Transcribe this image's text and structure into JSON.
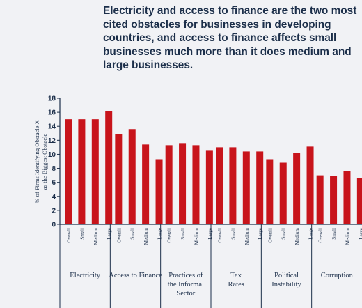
{
  "title": "Electricity and access to finance are the two most cited obstacles for businesses in developing countries, and access to finance affects small businesses much more than it does medium and large businesses.",
  "chart_data": {
    "type": "bar",
    "title": "Electricity and access to finance are the two most cited obstacles for businesses in developing countries, and access to finance affects small businesses much more than it does medium and large businesses.",
    "ylabel": "% of Firms Identifying Obstacle X as the Biggest Obstacle",
    "ylim": [
      0,
      18
    ],
    "yticks": [
      "0",
      "2",
      "4",
      "6",
      "8",
      "10",
      "12",
      "14",
      "16",
      "18"
    ],
    "subcategories": [
      "Overall",
      "Small",
      "Medium",
      "Large"
    ],
    "groups": [
      {
        "label": "Electricity",
        "values": [
          15.0,
          15.0,
          15.0,
          16.2
        ]
      },
      {
        "label": "Access to Finance",
        "values": [
          12.9,
          13.6,
          11.4,
          9.3
        ]
      },
      {
        "label": "Practices of the Informal Sector",
        "values": [
          11.3,
          11.6,
          11.3,
          10.6
        ]
      },
      {
        "label": "Tax Rates",
        "values": [
          11.0,
          11.0,
          10.4,
          10.4
        ]
      },
      {
        "label": "Political Instability",
        "values": [
          9.3,
          8.8,
          10.2,
          11.1
        ]
      },
      {
        "label": "Corruption",
        "values": [
          7.0,
          6.9,
          7.6,
          6.6
        ]
      }
    ],
    "bar_color": "#c8141b",
    "grid": false
  }
}
